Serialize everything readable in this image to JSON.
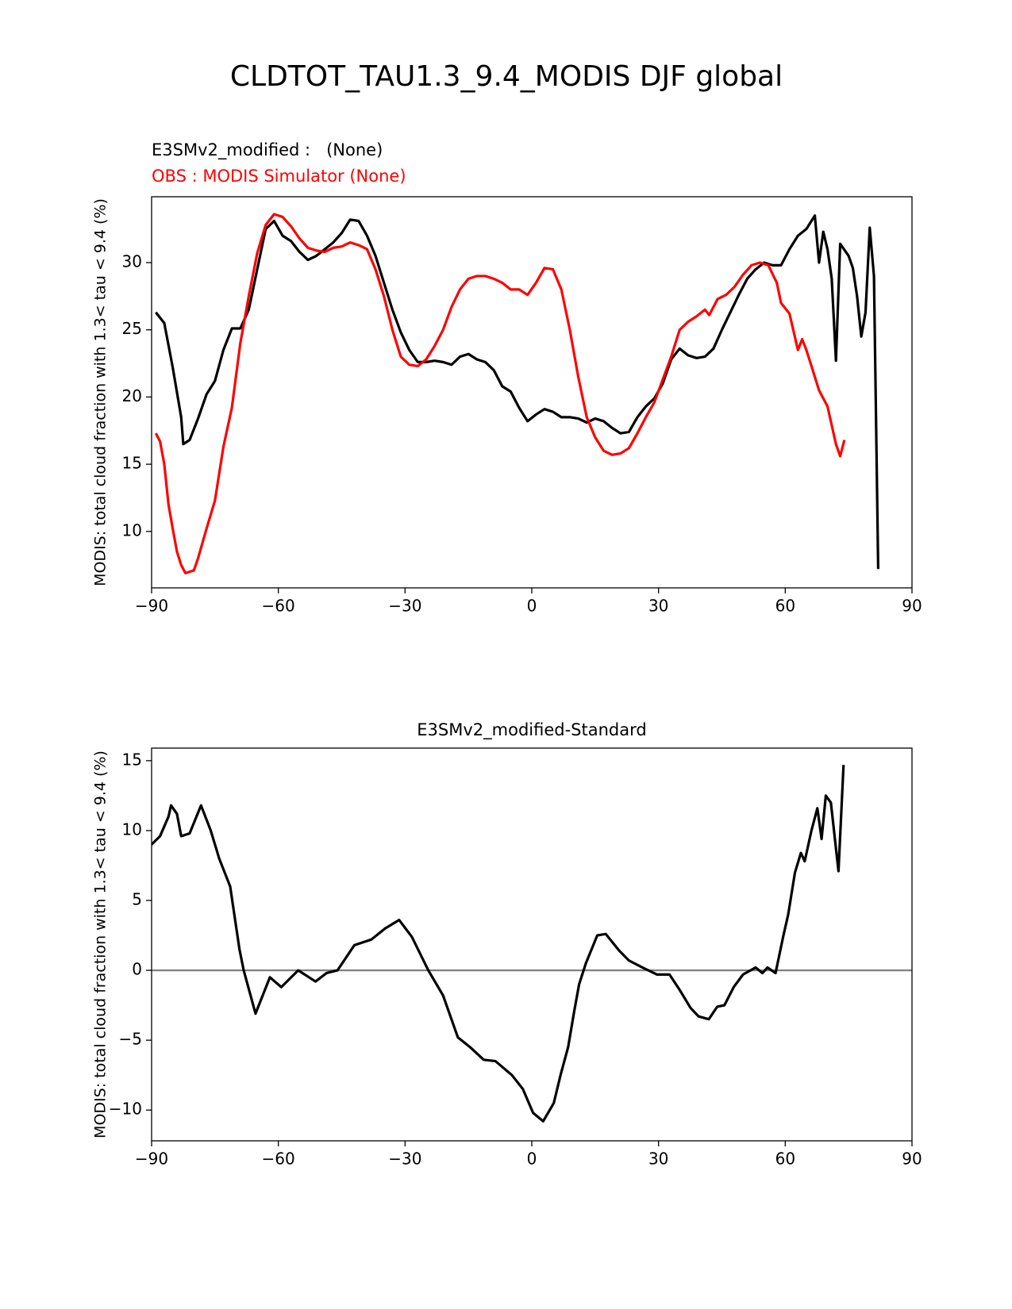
{
  "title": "CLDTOT_TAU1.3_9.4_MODIS DJF global",
  "chart_data": [
    {
      "type": "line",
      "ylabel": "MODIS: total cloud fraction with 1.3< tau < 9.4 (%)",
      "xlim": [
        -90,
        90
      ],
      "ylim": [
        5.8,
        34.9
      ],
      "xticks": [
        {
          "value": -90,
          "label": "−90"
        },
        {
          "value": -60,
          "label": "−60"
        },
        {
          "value": -30,
          "label": "−30"
        },
        0,
        30,
        60,
        90
      ],
      "yticks": [
        10,
        15,
        20,
        25,
        30
      ],
      "series": [
        {
          "name": "E3SMv2_modified :   (None)",
          "color": "#000000",
          "x": [
            -89,
            -87,
            -85,
            -83,
            -82.5,
            -81,
            -79,
            -77,
            -75,
            -73,
            -71,
            -69,
            -67,
            -65,
            -63,
            -61,
            -59,
            -57,
            -55,
            -53,
            -51,
            -49,
            -47,
            -45,
            -43,
            -41,
            -39,
            -37,
            -35,
            -33,
            -31,
            -29,
            -27,
            -25,
            -23,
            -21,
            -19,
            -17,
            -15,
            -13,
            -11,
            -9,
            -7,
            -5,
            -3,
            -1,
            1,
            3,
            5,
            7,
            9,
            11,
            13,
            15,
            17,
            19,
            21,
            23,
            25,
            27,
            29,
            31,
            33,
            35,
            37,
            39,
            41,
            43,
            45,
            47,
            49,
            51,
            53,
            55,
            57,
            59,
            61,
            63,
            65,
            67,
            68,
            69,
            70,
            71,
            72,
            73,
            75,
            76,
            77,
            78,
            79,
            80,
            81,
            82
          ],
          "values": [
            26.3,
            25.5,
            22.2,
            18.5,
            16.5,
            16.8,
            18.4,
            20.2,
            21.2,
            23.5,
            25.1,
            25.1,
            26.5,
            29.5,
            32.5,
            33.1,
            32.0,
            31.6,
            30.8,
            30.2,
            30.5,
            31.0,
            31.5,
            32.2,
            33.2,
            33.1,
            32.0,
            30.5,
            28.5,
            26.5,
            24.8,
            23.5,
            22.6,
            22.6,
            22.7,
            22.6,
            22.4,
            23.0,
            23.2,
            22.8,
            22.6,
            22.0,
            20.8,
            20.4,
            19.2,
            18.2,
            18.7,
            19.1,
            18.9,
            18.5,
            18.5,
            18.4,
            18.1,
            18.4,
            18.2,
            17.7,
            17.3,
            17.4,
            18.5,
            19.3,
            19.9,
            21.0,
            22.8,
            23.6,
            23.1,
            22.9,
            23.0,
            23.6,
            25.0,
            26.3,
            27.6,
            28.8,
            29.5,
            30.0,
            29.8,
            29.8,
            31.0,
            32.0,
            32.5,
            33.5,
            30.0,
            32.3,
            31.0,
            28.8,
            22.7,
            31.4,
            30.5,
            29.6,
            27.5,
            24.5,
            26.3,
            32.6,
            29.0,
            7.2
          ]
        },
        {
          "name": "OBS : MODIS Simulator (None)",
          "color": "#ff0000",
          "x": [
            -89,
            -88,
            -87,
            -86,
            -85,
            -84,
            -83,
            -82,
            -80,
            -79,
            -77,
            -75,
            -73,
            -71,
            -69,
            -67,
            -65,
            -63,
            -61,
            -59,
            -57,
            -55,
            -53,
            -51,
            -49,
            -47,
            -45,
            -43,
            -41,
            -39,
            -37,
            -35,
            -33,
            -31,
            -29,
            -27,
            -25,
            -23,
            -21,
            -19,
            -17,
            -15,
            -13,
            -11,
            -9,
            -7,
            -5,
            -3,
            -1,
            1,
            3,
            5,
            7,
            9,
            11,
            13,
            15,
            17,
            19,
            21,
            23,
            25,
            27,
            29,
            31,
            33,
            35,
            37,
            39,
            41,
            42,
            44,
            46,
            48,
            50,
            52,
            54,
            56,
            58,
            59,
            61,
            63,
            64,
            65,
            67,
            68,
            70,
            72,
            73,
            74
          ],
          "values": [
            17.3,
            16.7,
            15.0,
            12.0,
            10.2,
            8.5,
            7.5,
            6.9,
            7.1,
            8.0,
            10.2,
            12.3,
            16.3,
            19.2,
            24.0,
            27.5,
            30.7,
            32.8,
            33.6,
            33.4,
            32.7,
            31.8,
            31.1,
            30.9,
            30.8,
            31.1,
            31.2,
            31.5,
            31.3,
            31.0,
            29.5,
            27.5,
            25.0,
            23.0,
            22.4,
            22.3,
            22.8,
            23.8,
            25.0,
            26.7,
            28.0,
            28.8,
            29.0,
            29.0,
            28.8,
            28.5,
            28.0,
            28.0,
            27.6,
            28.5,
            29.6,
            29.5,
            28.0,
            25.0,
            21.5,
            18.5,
            17.0,
            16.0,
            15.7,
            15.8,
            16.2,
            17.3,
            18.5,
            19.6,
            21.3,
            23.0,
            25.0,
            25.6,
            26.0,
            26.5,
            26.1,
            27.3,
            27.6,
            28.2,
            29.1,
            29.8,
            30.0,
            29.8,
            28.5,
            27.0,
            26.2,
            23.5,
            24.3,
            23.5,
            21.5,
            20.5,
            19.3,
            16.5,
            15.6,
            16.8
          ]
        }
      ]
    },
    {
      "type": "line",
      "title": "E3SMv2_modified-Standard",
      "ylabel": "MODIS: total cloud fraction with 1.3< tau < 9.4 (%)",
      "xlim": [
        -90,
        90
      ],
      "ylim": [
        -12.2,
        15.9
      ],
      "xticks": [
        {
          "value": -90,
          "label": "−90"
        },
        {
          "value": -60,
          "label": "−60"
        },
        {
          "value": -30,
          "label": "−30"
        },
        0,
        30,
        60,
        90
      ],
      "yticks": [
        {
          "value": -10,
          "label": "−10"
        },
        {
          "value": -5,
          "label": "−5"
        },
        0,
        5,
        10,
        15
      ],
      "reference_line": 0,
      "series": [
        {
          "color": "#000000",
          "x": [
            -90,
            -88,
            -86,
            -85.4,
            -84,
            -83,
            -81,
            -78.3,
            -76,
            -74,
            -71.4,
            -69.2,
            -68.2,
            -65.4,
            -62,
            -59.3,
            -55.3,
            -51.2,
            -48.6,
            -46,
            -42,
            -38,
            -34.7,
            -31.4,
            -28.4,
            -24.5,
            -21,
            -17.5,
            -14.6,
            -11.4,
            -8.6,
            -4.7,
            -2.1,
            0.3,
            2.7,
            5.2,
            6.8,
            8.6,
            10,
            11.2,
            12.8,
            15.5,
            17.5,
            20.7,
            23,
            26.2,
            29.6,
            32.6,
            35,
            37.6,
            39.5,
            41.9,
            43.9,
            45.6,
            47.8,
            50,
            53,
            54.6,
            55.8,
            57.7,
            59.5,
            60.7,
            62.3,
            63.7,
            64.6,
            66.2,
            67.6,
            68.6,
            69.6,
            70.8,
            72.6,
            73.8
          ],
          "values": [
            9.0,
            9.6,
            11.0,
            11.8,
            11.2,
            9.6,
            9.8,
            11.8,
            10.0,
            8.0,
            6.0,
            1.5,
            0.0,
            -3.1,
            -0.5,
            -1.2,
            0.0,
            -0.8,
            -0.2,
            0.0,
            1.8,
            2.2,
            3.0,
            3.6,
            2.4,
            0.0,
            -1.8,
            -4.8,
            -5.5,
            -6.4,
            -6.5,
            -7.5,
            -8.5,
            -10.2,
            -10.8,
            -9.5,
            -7.5,
            -5.5,
            -3.0,
            -1.0,
            0.5,
            2.5,
            2.6,
            1.4,
            0.7,
            0.2,
            -0.3,
            -0.3,
            -1.4,
            -2.7,
            -3.3,
            -3.5,
            -2.6,
            -2.5,
            -1.2,
            -0.3,
            0.2,
            -0.2,
            0.2,
            -0.2,
            2.4,
            4.0,
            7.0,
            8.4,
            7.8,
            10.0,
            11.6,
            9.4,
            12.5,
            12.0,
            7.1,
            14.7
          ]
        }
      ]
    }
  ]
}
